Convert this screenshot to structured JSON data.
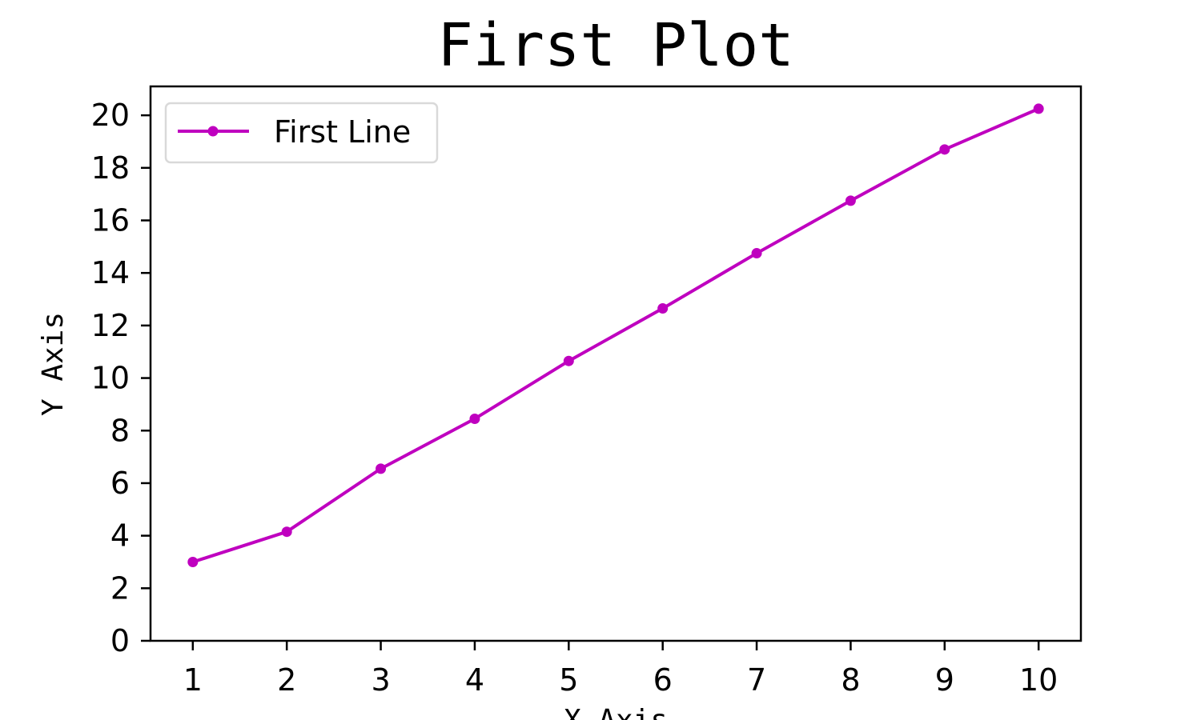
{
  "chart_data": {
    "type": "line",
    "title": "First Plot",
    "xlabel": "X Axis",
    "ylabel": "Y Axis",
    "x": [
      1,
      2,
      3,
      4,
      5,
      6,
      7,
      8,
      9,
      10
    ],
    "xticks": [
      "1",
      "2",
      "3",
      "4",
      "5",
      "6",
      "7",
      "8",
      "9",
      "10"
    ],
    "yticks": [
      "0",
      "2",
      "4",
      "6",
      "8",
      "10",
      "12",
      "14",
      "16",
      "18",
      "20"
    ],
    "xlim": [
      0.55,
      10.45
    ],
    "ylim": [
      0,
      21.1
    ],
    "grid": false,
    "legend_position": "top-left",
    "series": [
      {
        "name": "First Line",
        "color": "#bf00bf",
        "marker": "circle",
        "values": [
          3.0,
          4.15,
          6.55,
          8.45,
          10.65,
          12.65,
          14.75,
          16.75,
          18.7,
          20.25
        ]
      }
    ]
  }
}
